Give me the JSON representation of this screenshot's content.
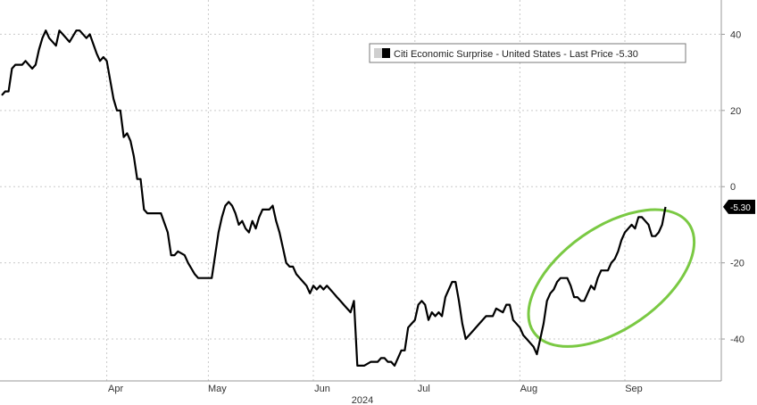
{
  "chart_data": {
    "type": "line",
    "title": "",
    "xlabel": "2024",
    "ylabel": "",
    "x_ticks": [
      "Apr",
      "May",
      "Jun",
      "Jul",
      "Aug",
      "Sep"
    ],
    "x_tick_dates": [
      "2024-04-01",
      "2024-05-01",
      "2024-06-01",
      "2024-07-01",
      "2024-08-01",
      "2024-09-01"
    ],
    "xlim": [
      "2024-03-01",
      "2024-09-30"
    ],
    "y_ticks": [
      40,
      20,
      0,
      -20,
      -40
    ],
    "ylim": [
      -51,
      49
    ],
    "y_axis_side": "right",
    "grid": true,
    "legend": {
      "placement": "top-right",
      "label": "Citi Economic Surprise - United States - Last Price -5.30"
    },
    "last_value_label": "-5.30",
    "series": [
      {
        "name": "Citi Economic Surprise - United States - Last Price -5.30",
        "color": "#000000",
        "points": [
          [
            "2024-03-01",
            24
          ],
          [
            "2024-03-02",
            25
          ],
          [
            "2024-03-03",
            25
          ],
          [
            "2024-03-04",
            31
          ],
          [
            "2024-03-05",
            32
          ],
          [
            "2024-03-06",
            32
          ],
          [
            "2024-03-07",
            32
          ],
          [
            "2024-03-08",
            33
          ],
          [
            "2024-03-09",
            32
          ],
          [
            "2024-03-10",
            31
          ],
          [
            "2024-03-11",
            32
          ],
          [
            "2024-03-12",
            36
          ],
          [
            "2024-03-13",
            39
          ],
          [
            "2024-03-14",
            41
          ],
          [
            "2024-03-15",
            39
          ],
          [
            "2024-03-17",
            37
          ],
          [
            "2024-03-18",
            41
          ],
          [
            "2024-03-19",
            40
          ],
          [
            "2024-03-21",
            38
          ],
          [
            "2024-03-23",
            41
          ],
          [
            "2024-03-24",
            41
          ],
          [
            "2024-03-26",
            39
          ],
          [
            "2024-03-27",
            40
          ],
          [
            "2024-03-29",
            35
          ],
          [
            "2024-03-30",
            33
          ],
          [
            "2024-03-31",
            34
          ],
          [
            "2024-04-01",
            33
          ],
          [
            "2024-04-02",
            28
          ],
          [
            "2024-04-03",
            23
          ],
          [
            "2024-04-04",
            20
          ],
          [
            "2024-04-05",
            20
          ],
          [
            "2024-04-06",
            13
          ],
          [
            "2024-04-07",
            14
          ],
          [
            "2024-04-08",
            12
          ],
          [
            "2024-04-09",
            8
          ],
          [
            "2024-04-10",
            2
          ],
          [
            "2024-04-11",
            2
          ],
          [
            "2024-04-12",
            -6
          ],
          [
            "2024-04-13",
            -7
          ],
          [
            "2024-04-15",
            -7
          ],
          [
            "2024-04-17",
            -7
          ],
          [
            "2024-04-19",
            -12
          ],
          [
            "2024-04-20",
            -18
          ],
          [
            "2024-04-21",
            -18
          ],
          [
            "2024-04-22",
            -17
          ],
          [
            "2024-04-24",
            -18
          ],
          [
            "2024-04-25",
            -20
          ],
          [
            "2024-04-27",
            -23
          ],
          [
            "2024-04-28",
            -24
          ],
          [
            "2024-05-01",
            -24
          ],
          [
            "2024-05-02",
            -24
          ],
          [
            "2024-05-03",
            -18
          ],
          [
            "2024-05-04",
            -12
          ],
          [
            "2024-05-05",
            -8
          ],
          [
            "2024-05-06",
            -5
          ],
          [
            "2024-05-07",
            -4
          ],
          [
            "2024-05-08",
            -5
          ],
          [
            "2024-05-09",
            -7
          ],
          [
            "2024-05-10",
            -10
          ],
          [
            "2024-05-11",
            -9
          ],
          [
            "2024-05-12",
            -11
          ],
          [
            "2024-05-13",
            -12
          ],
          [
            "2024-05-14",
            -9
          ],
          [
            "2024-05-15",
            -11
          ],
          [
            "2024-05-16",
            -8
          ],
          [
            "2024-05-17",
            -6
          ],
          [
            "2024-05-19",
            -6
          ],
          [
            "2024-05-20",
            -5
          ],
          [
            "2024-05-21",
            -9
          ],
          [
            "2024-05-22",
            -12
          ],
          [
            "2024-05-23",
            -16
          ],
          [
            "2024-05-24",
            -20
          ],
          [
            "2024-05-25",
            -21
          ],
          [
            "2024-05-26",
            -21
          ],
          [
            "2024-05-27",
            -23
          ],
          [
            "2024-05-28",
            -24
          ],
          [
            "2024-05-29",
            -25
          ],
          [
            "2024-05-30",
            -26
          ],
          [
            "2024-05-31",
            -28
          ],
          [
            "2024-06-01",
            -26
          ],
          [
            "2024-06-02",
            -27
          ],
          [
            "2024-06-03",
            -26
          ],
          [
            "2024-06-04",
            -27
          ],
          [
            "2024-06-05",
            -26
          ],
          [
            "2024-06-06",
            -27
          ],
          [
            "2024-06-07",
            -28
          ],
          [
            "2024-06-08",
            -29
          ],
          [
            "2024-06-09",
            -30
          ],
          [
            "2024-06-10",
            -31
          ],
          [
            "2024-06-11",
            -32
          ],
          [
            "2024-06-12",
            -33
          ],
          [
            "2024-06-13",
            -30
          ],
          [
            "2024-06-14",
            -47
          ],
          [
            "2024-06-16",
            -47
          ],
          [
            "2024-06-18",
            -46
          ],
          [
            "2024-06-20",
            -46
          ],
          [
            "2024-06-21",
            -45
          ],
          [
            "2024-06-22",
            -45
          ],
          [
            "2024-06-23",
            -46
          ],
          [
            "2024-06-24",
            -46
          ],
          [
            "2024-06-25",
            -47
          ],
          [
            "2024-06-26",
            -45
          ],
          [
            "2024-06-27",
            -43
          ],
          [
            "2024-06-28",
            -43
          ],
          [
            "2024-06-29",
            -37
          ],
          [
            "2024-06-30",
            -36
          ],
          [
            "2024-07-01",
            -35
          ],
          [
            "2024-07-02",
            -31
          ],
          [
            "2024-07-03",
            -30
          ],
          [
            "2024-07-04",
            -31
          ],
          [
            "2024-07-05",
            -35
          ],
          [
            "2024-07-06",
            -33
          ],
          [
            "2024-07-07",
            -34
          ],
          [
            "2024-07-08",
            -33
          ],
          [
            "2024-07-09",
            -34
          ],
          [
            "2024-07-10",
            -29
          ],
          [
            "2024-07-11",
            -27
          ],
          [
            "2024-07-12",
            -25
          ],
          [
            "2024-07-13",
            -25
          ],
          [
            "2024-07-14",
            -30
          ],
          [
            "2024-07-15",
            -36
          ],
          [
            "2024-07-16",
            -40
          ],
          [
            "2024-07-17",
            -39
          ],
          [
            "2024-07-18",
            -38
          ],
          [
            "2024-07-20",
            -36
          ],
          [
            "2024-07-22",
            -34
          ],
          [
            "2024-07-24",
            -34
          ],
          [
            "2024-07-25",
            -32
          ],
          [
            "2024-07-27",
            -33
          ],
          [
            "2024-07-28",
            -31
          ],
          [
            "2024-07-29",
            -31
          ],
          [
            "2024-07-30",
            -35
          ],
          [
            "2024-08-01",
            -37
          ],
          [
            "2024-08-02",
            -39
          ],
          [
            "2024-08-03",
            -40
          ],
          [
            "2024-08-04",
            -41
          ],
          [
            "2024-08-05",
            -42
          ],
          [
            "2024-08-06",
            -44
          ],
          [
            "2024-08-07",
            -40
          ],
          [
            "2024-08-08",
            -36
          ],
          [
            "2024-08-09",
            -30
          ],
          [
            "2024-08-10",
            -28
          ],
          [
            "2024-08-11",
            -27
          ],
          [
            "2024-08-12",
            -25
          ],
          [
            "2024-08-13",
            -24
          ],
          [
            "2024-08-14",
            -24
          ],
          [
            "2024-08-15",
            -24
          ],
          [
            "2024-08-16",
            -26
          ],
          [
            "2024-08-17",
            -29
          ],
          [
            "2024-08-18",
            -29
          ],
          [
            "2024-08-19",
            -30
          ],
          [
            "2024-08-20",
            -30
          ],
          [
            "2024-08-21",
            -28
          ],
          [
            "2024-08-22",
            -26
          ],
          [
            "2024-08-23",
            -27
          ],
          [
            "2024-08-24",
            -24
          ],
          [
            "2024-08-25",
            -22
          ],
          [
            "2024-08-26",
            -22
          ],
          [
            "2024-08-27",
            -22
          ],
          [
            "2024-08-28",
            -20
          ],
          [
            "2024-08-29",
            -19
          ],
          [
            "2024-08-30",
            -17
          ],
          [
            "2024-08-31",
            -14
          ],
          [
            "2024-09-01",
            -12
          ],
          [
            "2024-09-02",
            -11
          ],
          [
            "2024-09-03",
            -10
          ],
          [
            "2024-09-04",
            -11
          ],
          [
            "2024-09-05",
            -8
          ],
          [
            "2024-09-06",
            -8
          ],
          [
            "2024-09-07",
            -9
          ],
          [
            "2024-09-08",
            -10
          ],
          [
            "2024-09-09",
            -13
          ],
          [
            "2024-09-10",
            -13
          ],
          [
            "2024-09-11",
            -12
          ],
          [
            "2024-09-12",
            -10
          ],
          [
            "2024-09-13",
            -5.3
          ]
        ]
      }
    ],
    "annotations": [
      {
        "type": "ellipse",
        "color": "#7ac943",
        "center": [
          "2024-08-28",
          -24
        ],
        "note": ""
      }
    ]
  }
}
